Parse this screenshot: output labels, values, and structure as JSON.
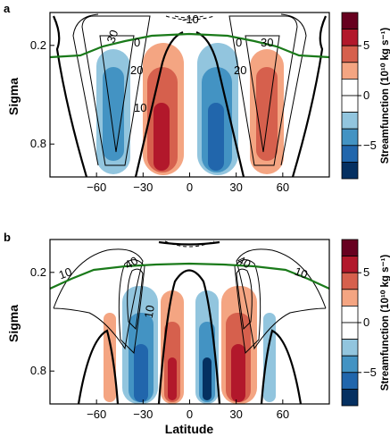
{
  "chart_data": [
    {
      "panel": "a",
      "type": "contour",
      "xlabel": "",
      "ylabel": "Sigma",
      "xlim": [
        -90,
        90
      ],
      "ylim": [
        1.0,
        0.0
      ],
      "xticks": [
        -60,
        -30,
        0,
        30,
        60
      ],
      "yticks": [
        0.2,
        0.8
      ],
      "contour_labels": [
        "-10",
        "0",
        "30",
        "20",
        "10",
        "0",
        "20",
        "30"
      ],
      "streamfunction_cells": [
        {
          "lat": -47,
          "sign": "negative",
          "peak": -6
        },
        {
          "lat": -17,
          "sign": "positive",
          "peak": 7
        },
        {
          "lat": 17,
          "sign": "negative",
          "peak": -7
        },
        {
          "lat": 47,
          "sign": "positive",
          "peak": 6
        }
      ],
      "tropopause": {
        "lat": [
          -90,
          -60,
          -45,
          -30,
          -15,
          0,
          15,
          30,
          45,
          60,
          90
        ],
        "sigma": [
          0.19,
          0.18,
          0.14,
          0.1,
          0.085,
          0.08,
          0.085,
          0.1,
          0.14,
          0.18,
          0.19
        ]
      },
      "colorbar": {
        "label": "Streamfunction (10¹⁰ kg s⁻¹)",
        "ticks": [
          "5",
          "0",
          "-5"
        ],
        "colors": [
          "#67001f",
          "#b2182b",
          "#d6604d",
          "#f4a582",
          "#ffffff",
          "#ffffff",
          "#92c5de",
          "#4393c3",
          "#2166ac",
          "#053061"
        ]
      }
    },
    {
      "panel": "b",
      "type": "contour",
      "xlabel": "Latitude",
      "ylabel": "Sigma",
      "xlim": [
        -90,
        90
      ],
      "ylim": [
        1.0,
        0.0
      ],
      "xticks": [
        -60,
        -30,
        0,
        30,
        60
      ],
      "yticks": [
        0.2,
        0.8
      ],
      "contour_labels": [
        "10",
        "40",
        "10",
        "40",
        "10"
      ],
      "streamfunction_cells": [
        {
          "lat": -48,
          "sign": "positive",
          "peak": 3
        },
        {
          "lat": -28,
          "sign": "negative",
          "peak": -6
        },
        {
          "lat": -14,
          "sign": "positive",
          "peak": 6
        },
        {
          "lat": 14,
          "sign": "negative",
          "peak": -7
        },
        {
          "lat": 28,
          "sign": "positive",
          "peak": 6
        },
        {
          "lat": 48,
          "sign": "negative",
          "peak": -3
        }
      ],
      "tropopause": {
        "lat": [
          -90,
          -60,
          -45,
          -30,
          -15,
          0,
          15,
          30,
          45,
          60,
          90
        ],
        "sigma": [
          0.27,
          0.2,
          0.17,
          0.16,
          0.15,
          0.145,
          0.15,
          0.16,
          0.17,
          0.2,
          0.27
        ]
      },
      "colorbar": {
        "label": "Streamfunction (10¹⁰ kg s⁻¹)",
        "ticks": [
          "5",
          "0",
          "-5"
        ],
        "colors": [
          "#67001f",
          "#b2182b",
          "#d6604d",
          "#f4a582",
          "#ffffff",
          "#ffffff",
          "#92c5de",
          "#4393c3",
          "#2166ac",
          "#053061"
        ]
      }
    }
  ],
  "panel_labels": [
    "a",
    "b"
  ]
}
